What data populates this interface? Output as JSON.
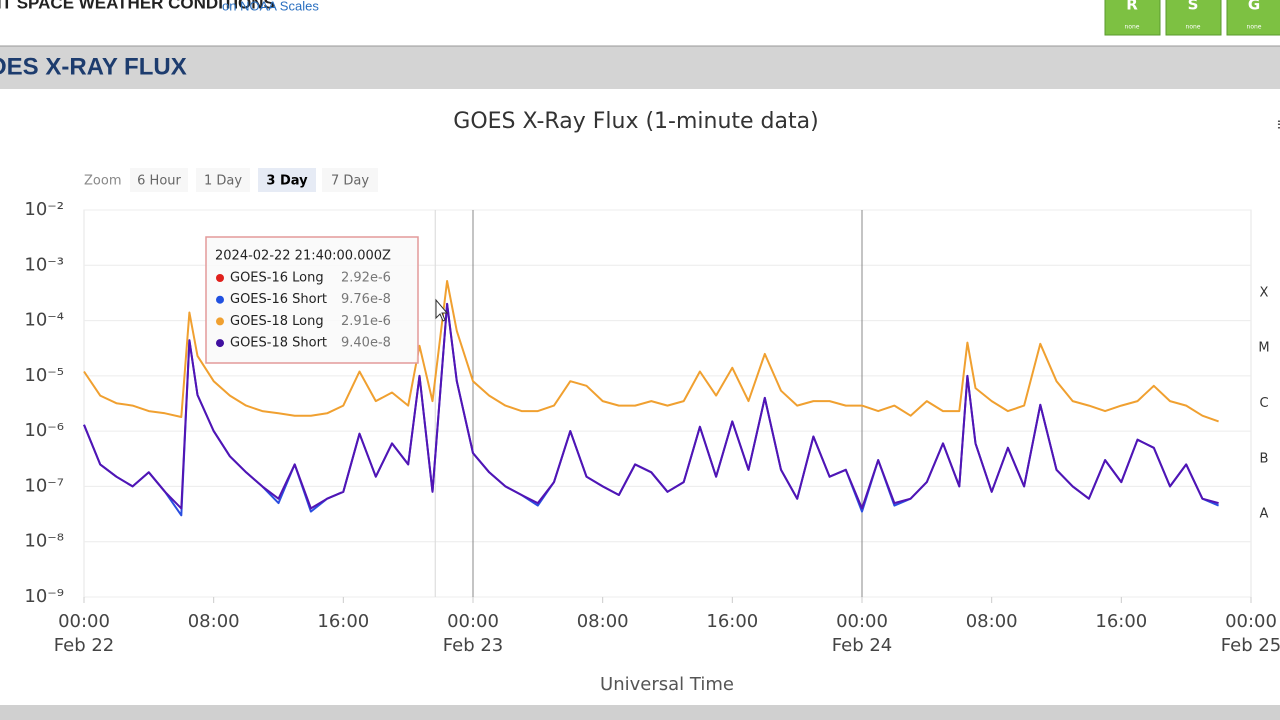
{
  "header": {
    "title": "ENT SPACE WEATHER CONDITIONS",
    "subtitle": "on NOAA Scales",
    "scales": [
      {
        "letter": "R",
        "status": "none"
      },
      {
        "letter": "S",
        "status": "none"
      },
      {
        "letter": "G",
        "status": "none"
      }
    ]
  },
  "section_title": "OES X-RAY FLUX",
  "zoom": {
    "label": "Zoom",
    "buttons": [
      "6 Hour",
      "1 Day",
      "3 Day",
      "7 Day"
    ],
    "active": 2
  },
  "tooltip": {
    "time": "2024-02-22 21:40:00.000Z",
    "rows": [
      {
        "name": "GOES-16 Long",
        "value": "2.92e-6",
        "color": "#e0201c"
      },
      {
        "name": "GOES-16 Short",
        "value": "9.76e-8",
        "color": "#2050e0"
      },
      {
        "name": "GOES-18 Long",
        "value": "2.91e-6",
        "color": "#f0a030"
      },
      {
        "name": "GOES-18 Short",
        "value": "9.40e-8",
        "color": "#4010a0"
      }
    ]
  },
  "chart_data": {
    "type": "line",
    "title": "GOES X-Ray Flux (1-minute data)",
    "x_label": "Universal Time",
    "log_y": true,
    "xlim": [
      0,
      72
    ],
    "ylim": [
      1e-09,
      0.01
    ],
    "xticks": [
      {
        "value": 0,
        "label": "00:00"
      },
      {
        "value": 8,
        "label": "08:00"
      },
      {
        "value": 16,
        "label": "16:00"
      },
      {
        "value": 24,
        "label": "00:00"
      },
      {
        "value": 32,
        "label": "08:00"
      },
      {
        "value": 40,
        "label": "16:00"
      },
      {
        "value": 48,
        "label": "00:00"
      },
      {
        "value": 56,
        "label": "08:00"
      },
      {
        "value": 64,
        "label": "16:00"
      },
      {
        "value": 72,
        "label": "00:00"
      }
    ],
    "xtick_dates": [
      {
        "value": 0,
        "label": "Feb 22"
      },
      {
        "value": 24,
        "label": "Feb 23"
      },
      {
        "value": 48,
        "label": "Feb 24"
      },
      {
        "value": 72,
        "label": "Feb 25"
      }
    ],
    "yticks": [
      {
        "value": 1e-09,
        "label": "10⁻⁹"
      },
      {
        "value": 1e-08,
        "label": "10⁻⁸"
      },
      {
        "value": 1e-07,
        "label": "10⁻⁷"
      },
      {
        "value": 1e-06,
        "label": "10⁻⁶"
      },
      {
        "value": 1e-05,
        "label": "10⁻⁵"
      },
      {
        "value": 0.0001,
        "label": "10⁻⁴"
      },
      {
        "value": 0.001,
        "label": "10⁻³"
      },
      {
        "value": 0.01,
        "label": "10⁻²"
      }
    ],
    "flare_classes": [
      {
        "label": "X",
        "value": 0.0001
      },
      {
        "label": "M",
        "value": 1e-05
      },
      {
        "label": "C",
        "value": 1e-06
      },
      {
        "label": "B",
        "value": 1e-07
      },
      {
        "label": "A",
        "value": 1e-08
      }
    ],
    "plot_lines_x": [
      24,
      48
    ],
    "crosshair_x": 21.67,
    "grid": true,
    "x": [
      0,
      1,
      2,
      3,
      4,
      5,
      6,
      6.5,
      7,
      8,
      9,
      10,
      11,
      12,
      13,
      14,
      15,
      16,
      17,
      18,
      19,
      20,
      20.7,
      21.5,
      22.4,
      23,
      24,
      25,
      26,
      27,
      28,
      29,
      30,
      31,
      32,
      33,
      34,
      35,
      36,
      37,
      38,
      39,
      40,
      41,
      42,
      43,
      44,
      45,
      46,
      47,
      48,
      49,
      50,
      51,
      52,
      53,
      54,
      54.5,
      55,
      56,
      57,
      58,
      59,
      60,
      61,
      62,
      63,
      64,
      65,
      66,
      67,
      68,
      69,
      70
    ],
    "series": [
      {
        "name": "GOES-16 Short",
        "color": "#2a4ee0",
        "values": [
          1.3e-06,
          2.5e-07,
          1.5e-07,
          1e-07,
          1.8e-07,
          8e-08,
          3e-08,
          4.4e-05,
          4.5e-06,
          1e-06,
          3.5e-07,
          1.8e-07,
          1e-07,
          5e-08,
          2.5e-07,
          3.5e-08,
          6e-08,
          8e-08,
          9e-07,
          1.5e-07,
          6e-07,
          2.5e-07,
          1e-05,
          8e-08,
          0.0002,
          8e-06,
          4e-07,
          1.8e-07,
          1e-07,
          7e-08,
          4.5e-08,
          1.2e-07,
          1e-06,
          1.5e-07,
          1e-07,
          7e-08,
          2.5e-07,
          1.8e-07,
          8e-08,
          1.2e-07,
          1.2e-06,
          1.5e-07,
          1.5e-06,
          2e-07,
          4e-06,
          2e-07,
          6e-08,
          8e-07,
          1.5e-07,
          2e-07,
          3.5e-08,
          3e-07,
          4.5e-08,
          6e-08,
          1.2e-07,
          6e-07,
          1e-07,
          1e-05,
          6e-07,
          8e-08,
          5e-07,
          1e-07,
          3e-06,
          2e-07,
          1e-07,
          6e-08,
          3e-07,
          1.2e-07,
          7e-07,
          5e-07,
          1e-07,
          2.5e-07,
          6e-08,
          4.5e-08
        ]
      },
      {
        "name": "GOES-18 Long",
        "color": "#f0a030",
        "values": [
          1.2e-05,
          4.4e-06,
          3.2e-06,
          2.9e-06,
          2.3e-06,
          2.1e-06,
          1.8e-06,
          0.00014,
          2.3e-05,
          8e-06,
          4.4e-06,
          2.9e-06,
          2.3e-06,
          2.1e-06,
          1.9e-06,
          1.9e-06,
          2.1e-06,
          2.9e-06,
          1.2e-05,
          3.5e-06,
          5e-06,
          2.9e-06,
          3.5e-05,
          3.5e-06,
          0.00052,
          6.5e-05,
          8e-06,
          4.4e-06,
          2.9e-06,
          2.3e-06,
          2.3e-06,
          2.9e-06,
          8e-06,
          6.6e-06,
          3.5e-06,
          2.9e-06,
          2.9e-06,
          3.5e-06,
          2.9e-06,
          3.5e-06,
          1.2e-05,
          4.4e-06,
          1.4e-05,
          3.5e-06,
          2.5e-05,
          5.4e-06,
          2.9e-06,
          3.5e-06,
          3.5e-06,
          2.9e-06,
          2.9e-06,
          2.3e-06,
          2.9e-06,
          1.9e-06,
          3.5e-06,
          2.3e-06,
          2.3e-06,
          4e-05,
          6e-06,
          3.5e-06,
          2.3e-06,
          2.9e-06,
          3.8e-05,
          8e-06,
          3.5e-06,
          2.9e-06,
          2.3e-06,
          2.9e-06,
          3.5e-06,
          6.6e-06,
          3.5e-06,
          2.9e-06,
          1.9e-06,
          1.5e-06
        ]
      },
      {
        "name": "GOES-18 Short",
        "color": "#5214b4",
        "values": [
          1.3e-06,
          2.5e-07,
          1.5e-07,
          1e-07,
          1.8e-07,
          8e-08,
          4e-08,
          4.4e-05,
          4.5e-06,
          1e-06,
          3.5e-07,
          1.8e-07,
          1e-07,
          6e-08,
          2.5e-07,
          4e-08,
          6e-08,
          8e-08,
          9e-07,
          1.5e-07,
          6e-07,
          2.5e-07,
          1e-05,
          8e-08,
          0.0002,
          8e-06,
          4e-07,
          1.8e-07,
          1e-07,
          7e-08,
          5e-08,
          1.2e-07,
          1e-06,
          1.5e-07,
          1e-07,
          7e-08,
          2.5e-07,
          1.8e-07,
          8e-08,
          1.2e-07,
          1.2e-06,
          1.5e-07,
          1.5e-06,
          2e-07,
          4e-06,
          2e-07,
          6e-08,
          8e-07,
          1.5e-07,
          2e-07,
          4e-08,
          3e-07,
          5e-08,
          6e-08,
          1.2e-07,
          6e-07,
          1e-07,
          1e-05,
          6e-07,
          8e-08,
          5e-07,
          1e-07,
          3e-06,
          2e-07,
          1e-07,
          6e-08,
          3e-07,
          1.2e-07,
          7e-07,
          5e-07,
          1e-07,
          2.5e-07,
          6e-08,
          5e-08
        ]
      }
    ]
  }
}
